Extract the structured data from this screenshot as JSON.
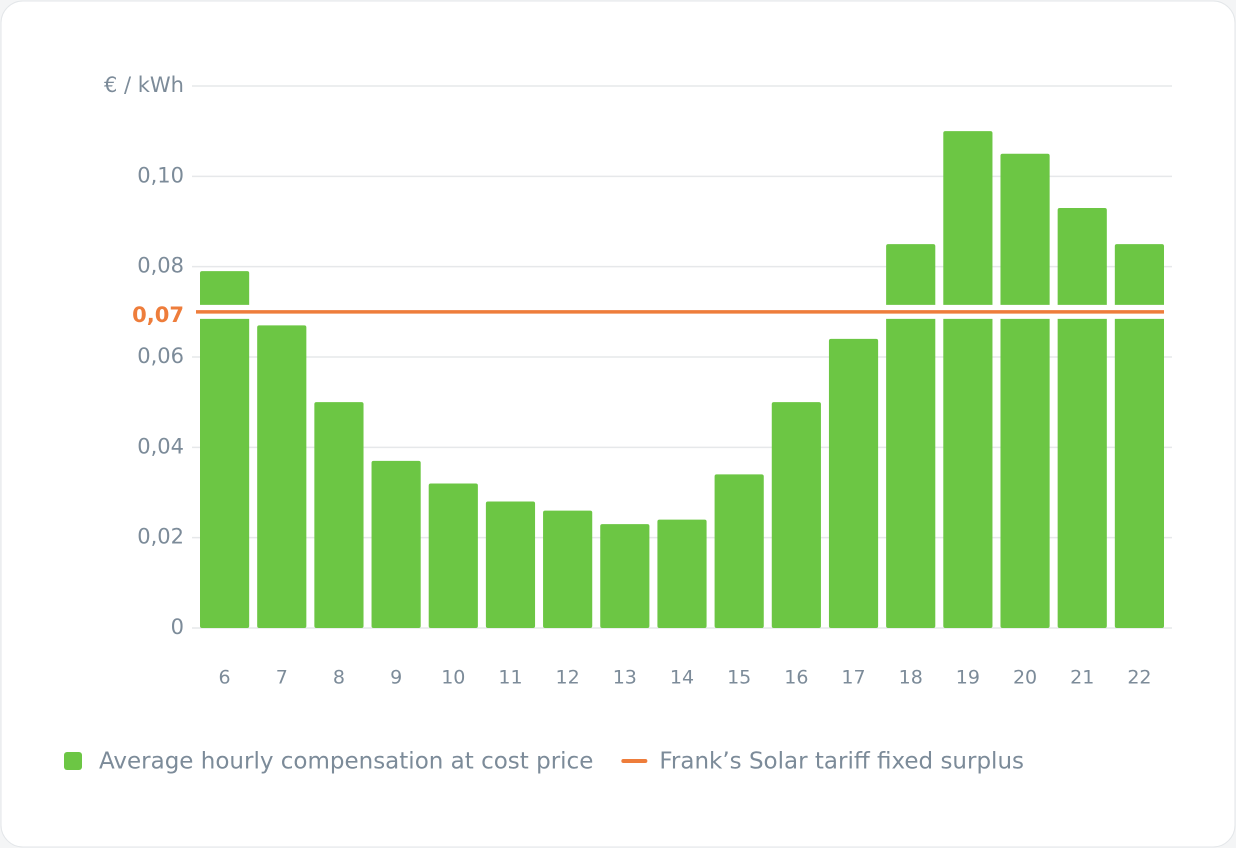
{
  "chart_data": {
    "type": "bar",
    "categories": [
      "6",
      "7",
      "8",
      "9",
      "10",
      "11",
      "12",
      "13",
      "14",
      "15",
      "16",
      "17",
      "18",
      "19",
      "20",
      "21",
      "22"
    ],
    "series": [
      {
        "name": "Average hourly compensation at cost price",
        "color": "#6cc644",
        "values": [
          0.079,
          0.067,
          0.05,
          0.037,
          0.032,
          0.028,
          0.026,
          0.023,
          0.024,
          0.034,
          0.05,
          0.064,
          0.085,
          0.11,
          0.105,
          0.093,
          0.085
        ]
      }
    ],
    "reference_lines": [
      {
        "name": "Frank’s Solar tariff fixed surplus",
        "value": 0.07,
        "label": "0,07",
        "color": "#ee7d3b"
      }
    ],
    "ylim": [
      0,
      0.12
    ],
    "yticks": [
      0,
      {
        "value": 0.02,
        "label": "0,02"
      },
      {
        "value": 0.04,
        "label": "0,04"
      },
      {
        "value": 0.06,
        "label": "0,06"
      },
      {
        "value": 0.08,
        "label": "0,08"
      },
      {
        "value": 0.1,
        "label": "0,10"
      },
      {
        "value": 0.12,
        "label": "€ / kWh"
      }
    ],
    "grid": true
  }
}
